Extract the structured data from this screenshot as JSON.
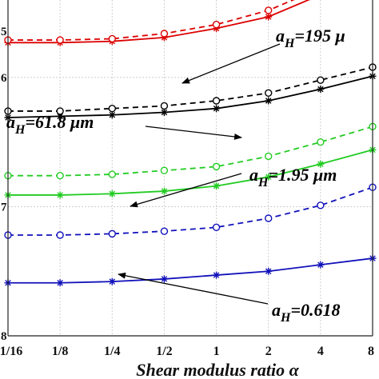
{
  "chart_data": {
    "type": "line",
    "xlabel": "Shear modulus ratio α",
    "ylabel": "",
    "x": [
      "1/16",
      "1/8",
      "1/4",
      "1/2",
      "1",
      "2",
      "4",
      "8"
    ],
    "yscale": "log",
    "ylim": [
      -8,
      -5.4
    ],
    "y_ticks": [
      {
        "value": -8,
        "label": "8"
      },
      {
        "value": -7,
        "label": "7"
      },
      {
        "value": -6,
        "label": "6"
      },
      {
        "value": -5,
        "label": "5"
      }
    ],
    "grid": true,
    "series": [
      {
        "group": "aH=195",
        "style": "solid",
        "marker": "star",
        "color": "#dd0000",
        "values": [
          -5.73,
          -5.73,
          -5.72,
          -5.69,
          -5.62,
          -5.53,
          -5.36,
          -5.18
        ]
      },
      {
        "group": "aH=195",
        "style": "dashed",
        "marker": "circle",
        "color": "#dd0000",
        "values": [
          -5.71,
          -5.71,
          -5.7,
          -5.66,
          -5.59,
          -5.48,
          -5.31,
          -5.14
        ]
      },
      {
        "group": "aH=61.8",
        "style": "solid",
        "marker": "star",
        "color": "#000000",
        "values": [
          -6.31,
          -6.3,
          -6.29,
          -6.27,
          -6.24,
          -6.18,
          -6.09,
          -5.99
        ]
      },
      {
        "group": "aH=61.8",
        "style": "dashed",
        "marker": "circle",
        "color": "#000000",
        "values": [
          -6.26,
          -6.26,
          -6.24,
          -6.22,
          -6.18,
          -6.12,
          -6.02,
          -5.92
        ]
      },
      {
        "group": "aH=1.95",
        "style": "solid",
        "marker": "star",
        "color": "#22cc22",
        "values": [
          -6.91,
          -6.91,
          -6.9,
          -6.88,
          -6.84,
          -6.77,
          -6.67,
          -6.56
        ]
      },
      {
        "group": "aH=1.95",
        "style": "dashed",
        "marker": "circle",
        "color": "#22cc22",
        "values": [
          -6.76,
          -6.76,
          -6.75,
          -6.72,
          -6.69,
          -6.61,
          -6.5,
          -6.38
        ]
      },
      {
        "group": "aH=0.618",
        "style": "solid",
        "marker": "star",
        "color": "#1111bb",
        "values": [
          -7.59,
          -7.59,
          -7.58,
          -7.56,
          -7.53,
          -7.5,
          -7.45,
          -7.4
        ]
      },
      {
        "group": "aH=0.618",
        "style": "dashed",
        "marker": "circle",
        "color": "#1111bb",
        "values": [
          -7.22,
          -7.22,
          -7.21,
          -7.19,
          -7.16,
          -7.09,
          -6.99,
          -6.85
        ]
      }
    ],
    "annotations": [
      {
        "text_a": "a",
        "text_sub": "H",
        "text_rest": "=195 μ",
        "color": "#000000"
      },
      {
        "text_a": "a",
        "text_sub": "H",
        "text_rest": "=61.8 μm",
        "color": "#000000"
      },
      {
        "text_a": "a",
        "text_sub": "H",
        "text_rest": "=1.95 μm",
        "color": "#000000"
      },
      {
        "text_a": "a",
        "text_sub": "H",
        "text_rest": "=0.618",
        "color": "#000000"
      }
    ]
  }
}
